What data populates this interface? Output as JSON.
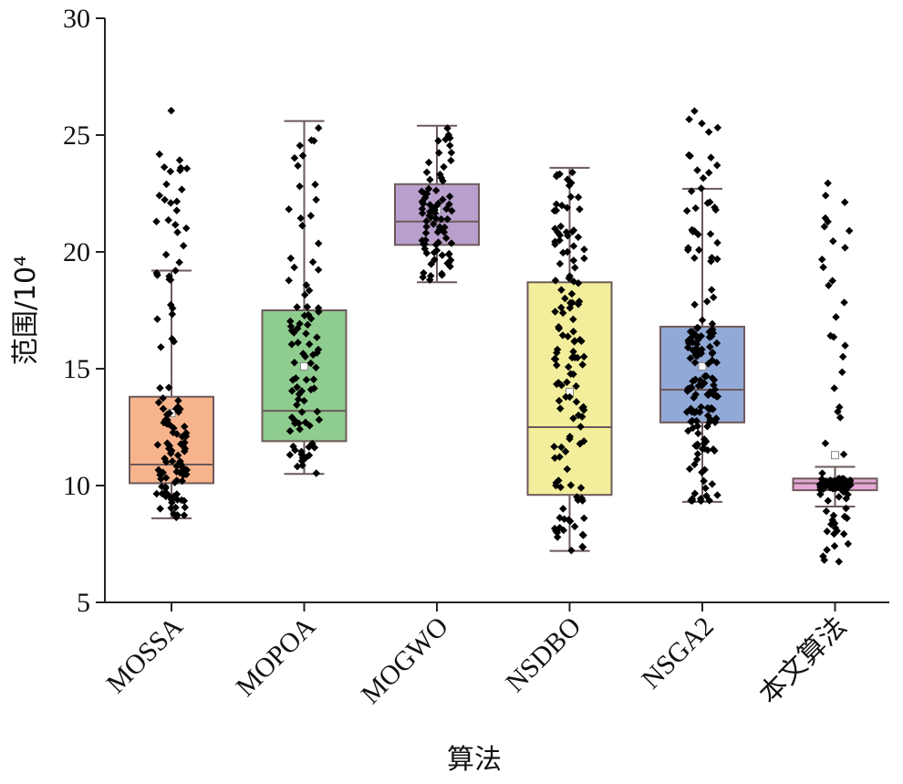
{
  "chart_data": {
    "type": "box",
    "xlabel": "算法",
    "ylabel": "范围/10⁴",
    "ylim": [
      5,
      30
    ],
    "yticks": [
      "5",
      "10",
      "15",
      "20",
      "25",
      "30"
    ],
    "grid": false,
    "categories": [
      "MOSSA",
      "MOPOA",
      "MOGWO",
      "NSDBO",
      "NSGA2",
      "本文算法"
    ],
    "series": [
      {
        "name": "MOSSA",
        "color": "#f7b48c",
        "min": 8.6,
        "q1": 10.1,
        "median": 10.9,
        "q3": 13.8,
        "max": 19.2,
        "mean": 13.1,
        "points_min": 8.6,
        "points_max": 26.1,
        "point_count": 120
      },
      {
        "name": "MOPOA",
        "color": "#8fcc8f",
        "min": 10.5,
        "q1": 11.9,
        "median": 13.2,
        "q3": 17.5,
        "max": 25.6,
        "mean": 15.1,
        "points_min": 10.5,
        "points_max": 25.6,
        "point_count": 90
      },
      {
        "name": "MOGWO",
        "color": "#b9a0cc",
        "min": 18.7,
        "q1": 20.3,
        "median": 21.3,
        "q3": 22.9,
        "max": 25.4,
        "mean": 21.8,
        "points_min": 18.7,
        "points_max": 25.4,
        "point_count": 80
      },
      {
        "name": "NSDBO",
        "color": "#f2ee9c",
        "min": 7.2,
        "q1": 9.6,
        "median": 12.5,
        "q3": 18.7,
        "max": 23.6,
        "mean": 14.0,
        "points_min": 7.2,
        "points_max": 23.6,
        "point_count": 130
      },
      {
        "name": "NSGA2",
        "color": "#91a9d6",
        "min": 9.3,
        "q1": 12.7,
        "median": 14.1,
        "q3": 16.8,
        "max": 22.7,
        "mean": 15.1,
        "points_min": 9.3,
        "points_max": 26.2,
        "point_count": 160
      },
      {
        "name": "本文算法",
        "color": "#e5a7d8",
        "min": 9.1,
        "q1": 9.8,
        "median": 10.1,
        "q3": 10.3,
        "max": 10.8,
        "mean": 11.3,
        "points_min": 6.7,
        "points_max": 23.1,
        "point_count": 110
      }
    ]
  }
}
